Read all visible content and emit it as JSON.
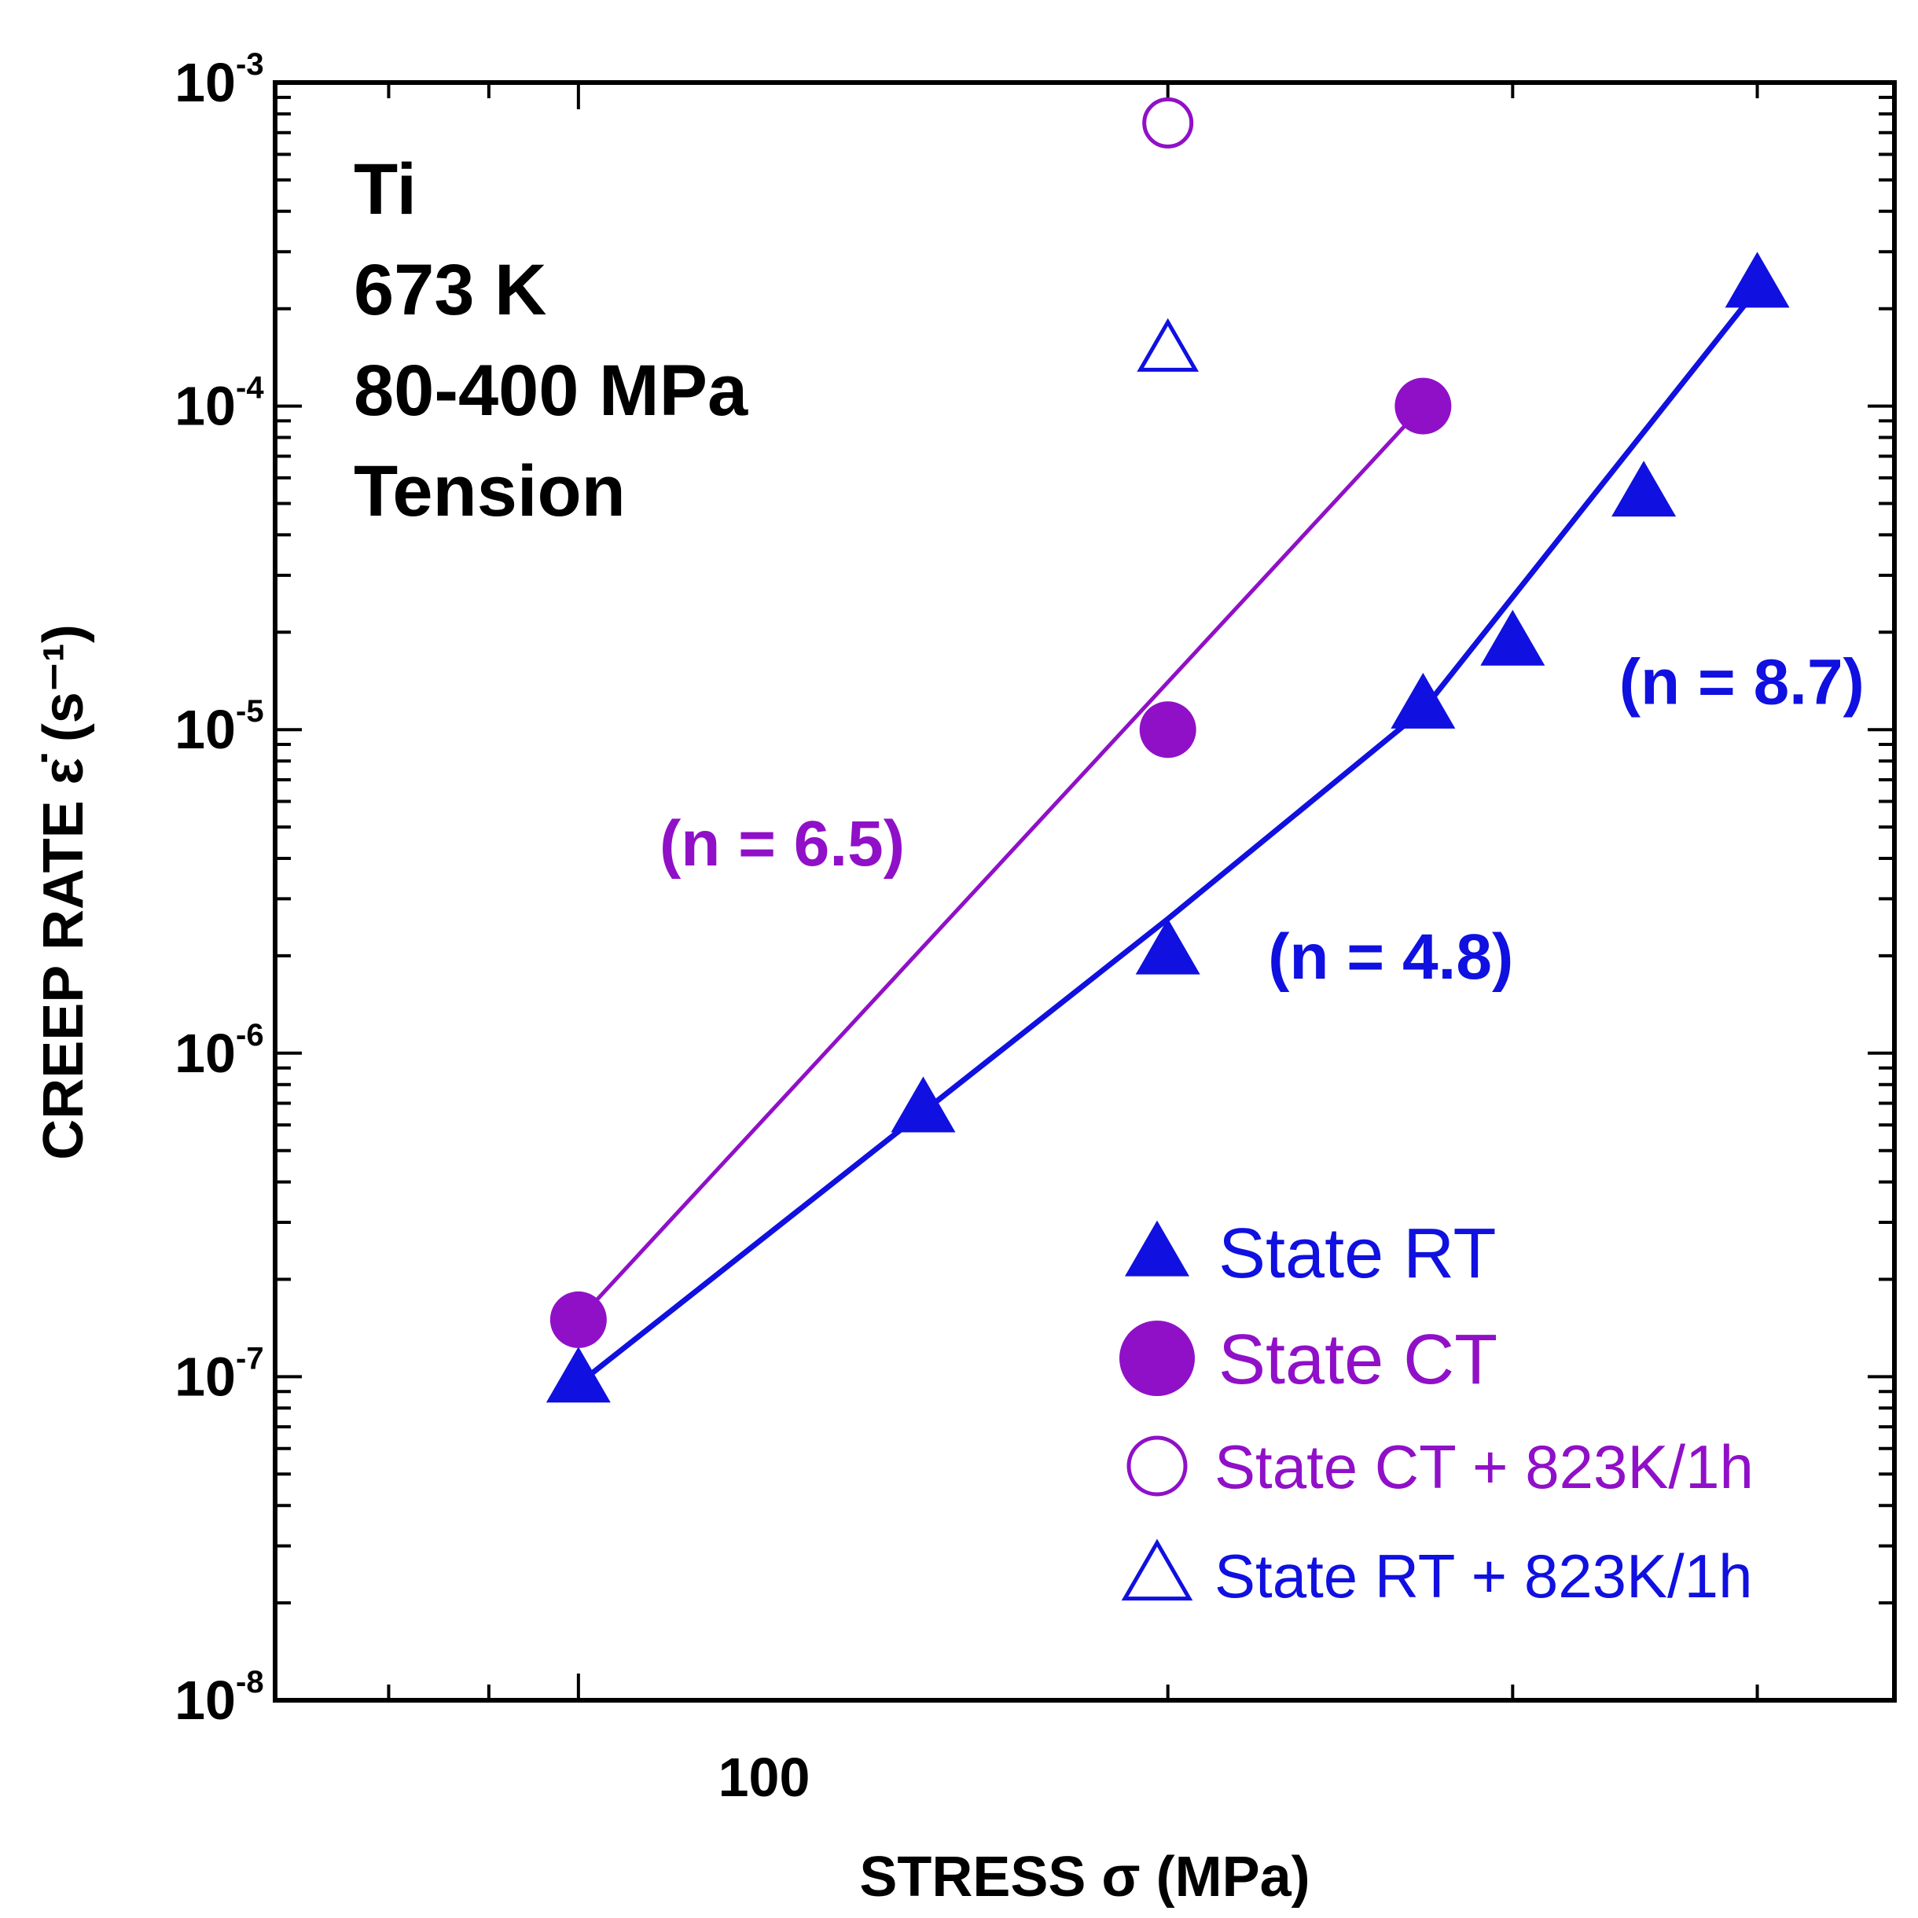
{
  "chart_data": {
    "type": "scatter",
    "x_scale": "log",
    "y_scale": "log",
    "xlim": [
      70,
      470
    ],
    "ylim": [
      1e-08,
      0.001
    ],
    "xlabel": "STRESS σ (MPa)",
    "ylabel": "CREEP RATE ε̇ (s⁻¹)",
    "x_ticks": [
      {
        "value": 100,
        "label": "100"
      }
    ],
    "y_ticks": [
      {
        "value": 1e-08,
        "base": "10",
        "exp": "-8"
      },
      {
        "value": 1e-07,
        "base": "10",
        "exp": "-7"
      },
      {
        "value": 1e-06,
        "base": "10",
        "exp": "-6"
      },
      {
        "value": 1e-05,
        "base": "10",
        "exp": "-5"
      },
      {
        "value": 0.0001,
        "base": "10",
        "exp": "-4"
      },
      {
        "value": 0.001,
        "base": "10",
        "exp": "-3"
      }
    ],
    "info_lines": [
      "Ti",
      "673 K",
      "80-400 MPa",
      "Tension"
    ],
    "series": [
      {
        "name": "State RT",
        "marker": "triangle",
        "filled": true,
        "color": "#1010e0",
        "points": [
          [
            100,
            9.5e-08
          ],
          [
            150,
            6.5e-07
          ],
          [
            200,
            2e-06
          ],
          [
            270,
            1.15e-05
          ],
          [
            300,
            1.8e-05
          ],
          [
            350,
            5.2e-05
          ],
          [
            400,
            0.00023
          ]
        ]
      },
      {
        "name": "State CT",
        "marker": "circle",
        "filled": true,
        "color": "#9010c8",
        "points": [
          [
            100,
            1.5e-07
          ],
          [
            200,
            1e-05
          ],
          [
            270,
            0.0001
          ]
        ]
      },
      {
        "name": "State CT + 823K/1h",
        "marker": "circle",
        "filled": false,
        "color": "#9010c8",
        "points": [
          [
            200,
            0.00075
          ]
        ]
      },
      {
        "name": "State RT + 823K/1h",
        "marker": "triangle",
        "filled": false,
        "color": "#1010e0",
        "points": [
          [
            200,
            0.000145
          ]
        ]
      }
    ],
    "fit_lines": [
      {
        "series": "State CT",
        "color": "#9010c8",
        "points": [
          [
            100,
            1.5e-07
          ],
          [
            270,
            0.0001
          ]
        ]
      },
      {
        "series": "State RT",
        "color": "#1010e0",
        "points": [
          [
            100,
            9.5e-08
          ],
          [
            200,
            2.6e-06
          ],
          [
            270,
            1.15e-05
          ],
          [
            400,
            0.00023
          ]
        ]
      }
    ],
    "annotations": [
      {
        "text": "(n = 6.5)",
        "color": "#9010c8",
        "x": 110,
        "y": 3.8e-06
      },
      {
        "text": "(n = 4.8)",
        "color": "#1010e0",
        "x": 225,
        "y": 1.7e-06
      },
      {
        "text": "(n = 8.7)",
        "color": "#1010e0",
        "x": 340,
        "y": 1.2e-05
      }
    ],
    "legend": {
      "position": "bottom-right",
      "entries": [
        {
          "label": "State RT",
          "marker": "triangle",
          "filled": true,
          "color": "#1010e0"
        },
        {
          "label": "State CT",
          "marker": "circle",
          "filled": true,
          "color": "#9010c8"
        },
        {
          "label": "State CT + 823K/1h",
          "marker": "circle",
          "filled": false,
          "color": "#9010c8"
        },
        {
          "label": "State RT + 823K/1h",
          "marker": "triangle",
          "filled": false,
          "color": "#1010e0"
        }
      ]
    }
  }
}
